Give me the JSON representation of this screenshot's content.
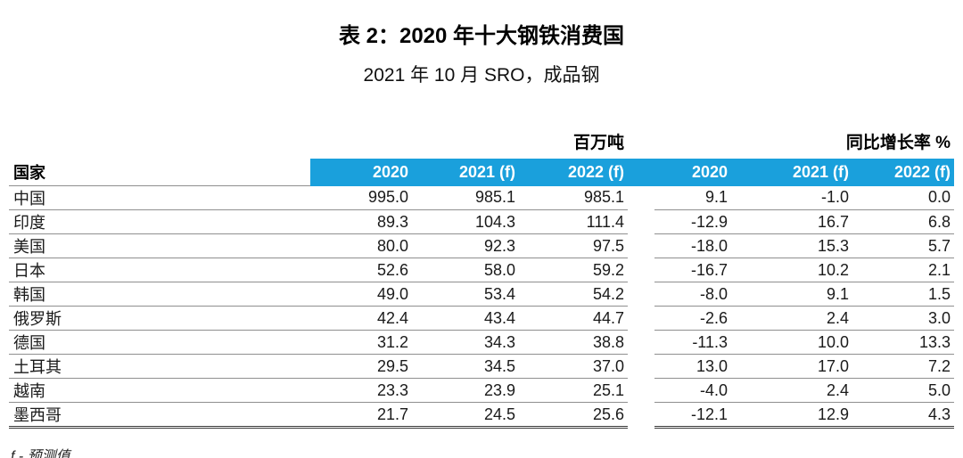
{
  "title": "表 2：2020 年十大钢铁消费国",
  "subtitle": "2021 年 10 月 SRO，成品钢",
  "table": {
    "country_header": "国家",
    "unit_left": "百万吨",
    "unit_right": "同比增长率 %",
    "columns": [
      "2020",
      "2021 (f)",
      "2022 (f)",
      "2020",
      "2021 (f)",
      "2022 (f)"
    ],
    "rows": [
      {
        "country": "中国",
        "values": [
          "995.0",
          "985.1",
          "985.1",
          "9.1",
          "-1.0",
          "0.0"
        ]
      },
      {
        "country": "印度",
        "values": [
          "89.3",
          "104.3",
          "111.4",
          "-12.9",
          "16.7",
          "6.8"
        ]
      },
      {
        "country": "美国",
        "values": [
          "80.0",
          "92.3",
          "97.5",
          "-18.0",
          "15.3",
          "5.7"
        ]
      },
      {
        "country": "日本",
        "values": [
          "52.6",
          "58.0",
          "59.2",
          "-16.7",
          "10.2",
          "2.1"
        ]
      },
      {
        "country": "韩国",
        "values": [
          "49.0",
          "53.4",
          "54.2",
          "-8.0",
          "9.1",
          "1.5"
        ]
      },
      {
        "country": "俄罗斯",
        "values": [
          "42.4",
          "43.4",
          "44.7",
          "-2.6",
          "2.4",
          "3.0"
        ]
      },
      {
        "country": "德国",
        "values": [
          "31.2",
          "34.3",
          "38.8",
          "-11.3",
          "10.0",
          "13.3"
        ]
      },
      {
        "country": "土耳其",
        "values": [
          "29.5",
          "34.5",
          "37.0",
          "13.0",
          "17.0",
          "7.2"
        ]
      },
      {
        "country": "越南",
        "values": [
          "23.3",
          "23.9",
          "25.1",
          "-4.0",
          "2.4",
          "5.0"
        ]
      },
      {
        "country": "墨西哥",
        "values": [
          "21.7",
          "24.5",
          "25.6",
          "-12.1",
          "12.9",
          "4.3"
        ]
      }
    ]
  },
  "footnote": "f - 预测值",
  "colors": {
    "header_bg": "#1AA0DC",
    "header_text": "#FFFFFF",
    "row_line": "#8F8F8F",
    "bottom_rule": "#3A3A3A",
    "text": "#1A1A1A"
  },
  "chart_data": {
    "type": "table",
    "title": "表 2：2020 年十大钢铁消费国",
    "subtitle": "2021 年 10 月 SRO，成品钢",
    "row_header": "国家",
    "column_groups": [
      {
        "label": "百万吨",
        "columns": [
          "2020",
          "2021 (f)",
          "2022 (f)"
        ]
      },
      {
        "label": "同比增长率 %",
        "columns": [
          "2020",
          "2021 (f)",
          "2022 (f)"
        ]
      }
    ],
    "rows": [
      {
        "country": "中国",
        "million_tonnes": [
          995.0,
          985.1,
          985.1
        ],
        "yoy_growth_pct": [
          9.1,
          -1.0,
          0.0
        ]
      },
      {
        "country": "印度",
        "million_tonnes": [
          89.3,
          104.3,
          111.4
        ],
        "yoy_growth_pct": [
          -12.9,
          16.7,
          6.8
        ]
      },
      {
        "country": "美国",
        "million_tonnes": [
          80.0,
          92.3,
          97.5
        ],
        "yoy_growth_pct": [
          -18.0,
          15.3,
          5.7
        ]
      },
      {
        "country": "日本",
        "million_tonnes": [
          52.6,
          58.0,
          59.2
        ],
        "yoy_growth_pct": [
          -16.7,
          10.2,
          2.1
        ]
      },
      {
        "country": "韩国",
        "million_tonnes": [
          49.0,
          53.4,
          54.2
        ],
        "yoy_growth_pct": [
          -8.0,
          9.1,
          1.5
        ]
      },
      {
        "country": "俄罗斯",
        "million_tonnes": [
          42.4,
          43.4,
          44.7
        ],
        "yoy_growth_pct": [
          -2.6,
          2.4,
          3.0
        ]
      },
      {
        "country": "德国",
        "million_tonnes": [
          31.2,
          34.3,
          38.8
        ],
        "yoy_growth_pct": [
          -11.3,
          10.0,
          13.3
        ]
      },
      {
        "country": "土耳其",
        "million_tonnes": [
          29.5,
          34.5,
          37.0
        ],
        "yoy_growth_pct": [
          13.0,
          17.0,
          7.2
        ]
      },
      {
        "country": "越南",
        "million_tonnes": [
          23.3,
          23.9,
          25.1
        ],
        "yoy_growth_pct": [
          -4.0,
          2.4,
          5.0
        ]
      },
      {
        "country": "墨西哥",
        "million_tonnes": [
          21.7,
          24.5,
          25.6
        ],
        "yoy_growth_pct": [
          -12.1,
          12.9,
          4.3
        ]
      }
    ],
    "footnote": "f - 预测值"
  }
}
